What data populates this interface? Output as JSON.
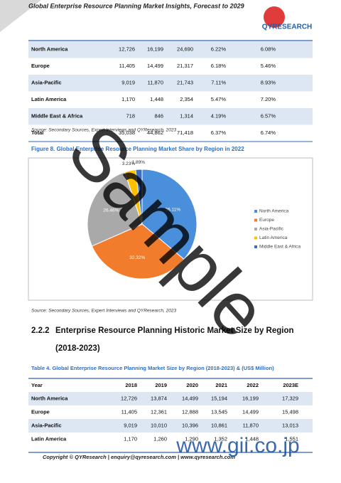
{
  "header": {
    "title": "Global Enterprise Resource Planning Market Insights, Forecast to 2029",
    "logo": "QYRESEARCH"
  },
  "table_top": {
    "rows": [
      [
        "North America",
        "12,726",
        "16,199",
        "24,690",
        "6.22%",
        "6.08%"
      ],
      [
        "Europe",
        "11,405",
        "14,499",
        "21,317",
        "6.18%",
        "5.46%"
      ],
      [
        "Asia-Pacific",
        "9,019",
        "11,870",
        "21,743",
        "7.11%",
        "8.93%"
      ],
      [
        "Latin America",
        "1,170",
        "1,448",
        "2,354",
        "5.47%",
        "7.20%"
      ],
      [
        "Middle East & Africa",
        "718",
        "846",
        "1,314",
        "4.19%",
        "6.57%"
      ],
      [
        "Total",
        "35,038",
        "44,862",
        "71,418",
        "6.37%",
        "6.74%"
      ]
    ]
  },
  "source_1": "Source: Secondary Sources, Expert Interviews and QYResearch, 2023",
  "figure": {
    "title": "Figure 8. Global Enterprise Resource Planning Market Share by Region in 2022",
    "chart_data": {
      "type": "pie",
      "categories": [
        "North America",
        "Europe",
        "Asia-Pacific",
        "Latin America",
        "Middle East & Africa"
      ],
      "values": [
        36.11,
        32.32,
        26.46,
        3.23,
        1.89
      ],
      "value_labels": [
        "36.11%",
        "32.32%",
        "26.46%",
        "3.23%",
        "1.89%"
      ],
      "colors": [
        "#4a8fdb",
        "#f07c2c",
        "#a9a9a9",
        "#ffc000",
        "#3a6fc0"
      ],
      "legend": "right"
    }
  },
  "source_2": "Source: Secondary Sources, Expert Interviews and QYResearch, 2023",
  "section": {
    "number": "2.2.2",
    "title": "Enterprise Resource Planning Historic Market Size by Region",
    "subtitle": "(2018-2023)"
  },
  "table_4": {
    "title": "Table 4.  Global Enterprise Resource Planning Market Size by Region (2018-2023) & (US$ Million)",
    "header": [
      "Year",
      "2018",
      "2019",
      "2020",
      "2021",
      "2022",
      "2023E"
    ],
    "rows": [
      [
        "North America",
        "12,726",
        "13,874",
        "14,499",
        "15,194",
        "16,199",
        "17,329"
      ],
      [
        "Europe",
        "11,405",
        "12,361",
        "12,888",
        "13,545",
        "14,499",
        "15,498"
      ],
      [
        "Asia-Pacific",
        "9,019",
        "10,010",
        "10,396",
        "10,861",
        "11,870",
        "13,013"
      ],
      [
        "Latin America",
        "1,170",
        "1,260",
        "1,290",
        "1,352",
        "1,448",
        "1,551"
      ]
    ]
  },
  "footer": "Copyright © QYResearch | enquiry@qyresearch.com | www.qyresearch.com",
  "watermark": {
    "main": "Sample",
    "site": "www.gii.co.jp"
  }
}
